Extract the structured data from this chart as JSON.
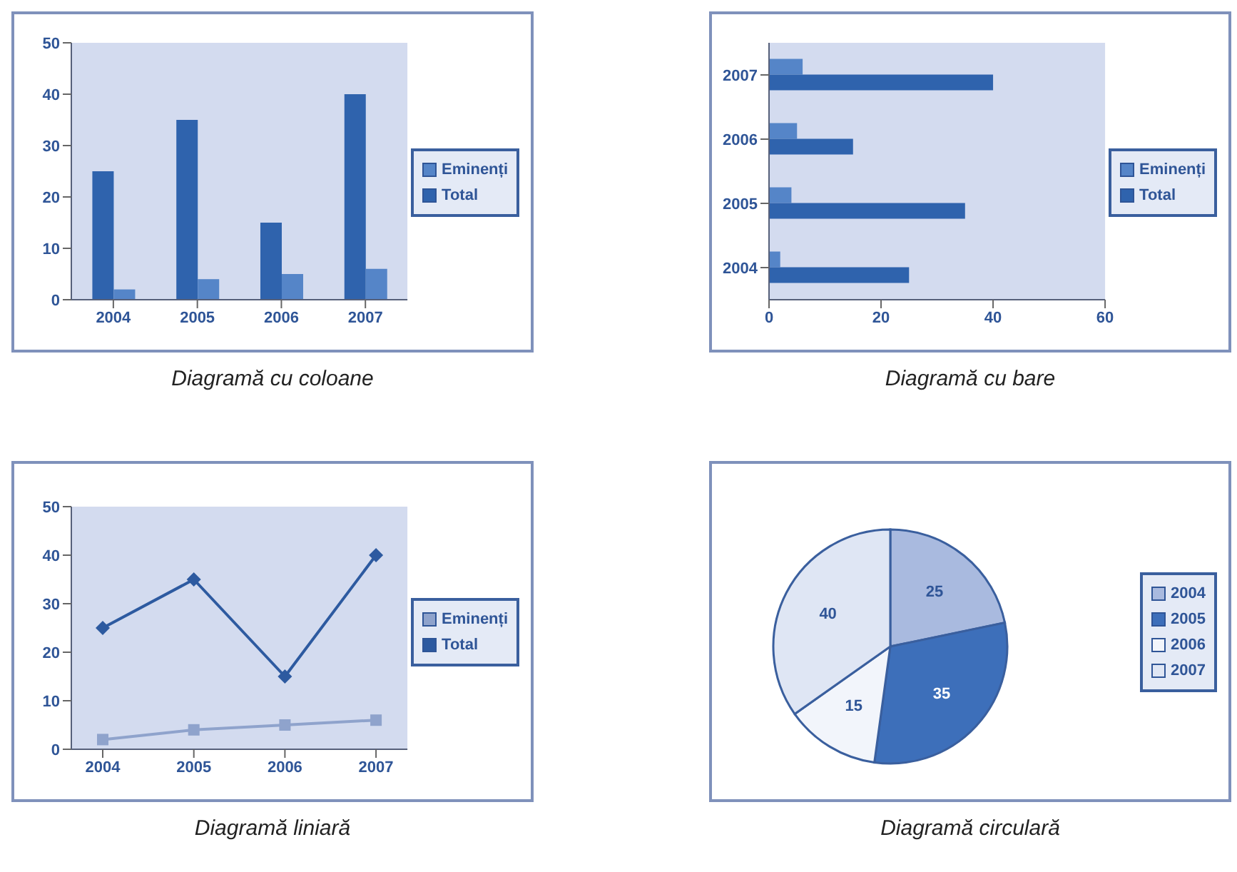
{
  "chart_data": [
    {
      "type": "bar",
      "categories": [
        "2004",
        "2005",
        "2006",
        "2007"
      ],
      "series": [
        {
          "name": "Total",
          "color": "#2f63ad",
          "values": [
            25,
            35,
            15,
            40
          ]
        },
        {
          "name": "Eminenți",
          "color": "#5585c8",
          "values": [
            2,
            4,
            5,
            6
          ]
        }
      ],
      "ylim": [
        0,
        50
      ],
      "yticks": [
        0,
        10,
        20,
        30,
        40,
        50
      ],
      "grid": false,
      "legend": "right",
      "annotations": [
        "Diagramă cu coloane"
      ]
    },
    {
      "type": "bar",
      "orientation": "horizontal",
      "categories": [
        "2007",
        "2006",
        "2005",
        "2004"
      ],
      "series": [
        {
          "name": "Eminenți",
          "color": "#5585c8",
          "values": [
            6,
            5,
            4,
            2
          ]
        },
        {
          "name": "Total",
          "color": "#2f63ad",
          "values": [
            40,
            15,
            35,
            25
          ]
        }
      ],
      "xlim": [
        0,
        60
      ],
      "xticks": [
        0,
        20,
        40,
        60
      ],
      "grid": false,
      "legend": "right",
      "annotations": [
        "Diagramă cu bare"
      ]
    },
    {
      "type": "line",
      "categories": [
        "2004",
        "2005",
        "2006",
        "2007"
      ],
      "series": [
        {
          "name": "Total",
          "color": "#2d5aa0",
          "values": [
            25,
            35,
            15,
            40
          ],
          "marker": "diamond"
        },
        {
          "name": "Eminenți",
          "color": "#8fa3cc",
          "values": [
            2,
            4,
            5,
            6
          ],
          "marker": "square"
        }
      ],
      "ylim": [
        0,
        50
      ],
      "yticks": [
        0,
        10,
        20,
        30,
        40,
        50
      ],
      "grid": false,
      "legend": "right",
      "annotations": [
        "Diagramă liniară"
      ]
    },
    {
      "type": "pie",
      "categories": [
        "2004",
        "2005",
        "2006",
        "2007"
      ],
      "values": [
        25,
        35,
        15,
        40
      ],
      "colors": [
        "#a9badf",
        "#3d6fba",
        "#f2f5fb",
        "#dfe6f4"
      ],
      "data_labels": true,
      "legend": "right",
      "annotations": [
        "Diagramă circulară"
      ]
    }
  ]
}
